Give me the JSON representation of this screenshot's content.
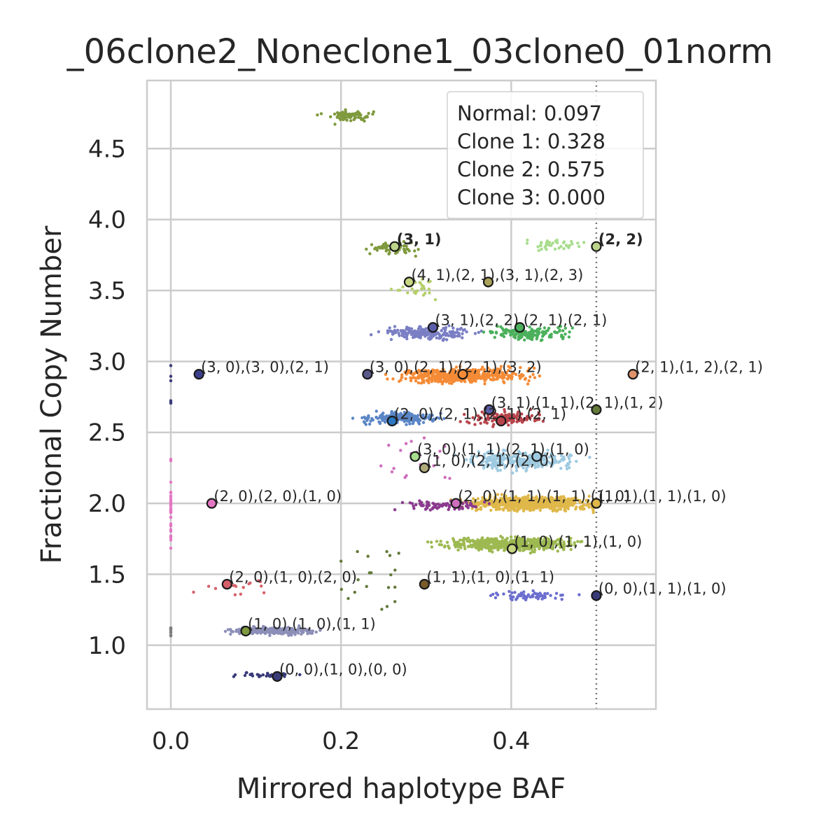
{
  "chart_data": {
    "type": "scatter",
    "title": "_06clone2_Noneclone1_03clone0_01norm",
    "xlabel": "Mirrored haplotype BAF",
    "ylabel": "Fractional Copy Number",
    "xlim": [
      -0.028,
      0.57
    ],
    "ylim": [
      0.55,
      4.98
    ],
    "x_ticks": [
      {
        "value": 0.0,
        "label": "0.0"
      },
      {
        "value": 0.2,
        "label": "0.2"
      },
      {
        "value": 0.4,
        "label": "0.4"
      }
    ],
    "y_ticks": [
      {
        "value": 1.0,
        "label": "1.0"
      },
      {
        "value": 1.5,
        "label": "1.5"
      },
      {
        "value": 2.0,
        "label": "2.0"
      },
      {
        "value": 2.5,
        "label": "2.5"
      },
      {
        "value": 3.0,
        "label": "3.0"
      },
      {
        "value": 3.5,
        "label": "3.5"
      },
      {
        "value": 4.0,
        "label": "4.0"
      },
      {
        "value": 4.5,
        "label": "4.5"
      }
    ],
    "grid": true,
    "reference_line": {
      "x": 0.5,
      "style": "dotted",
      "color": "#777777"
    },
    "legend_position": "top-right",
    "legend_entries": [
      "Normal: 0.097",
      "Clone 1: 0.328",
      "Clone 2: 0.575",
      "Clone 3: 0.000"
    ],
    "clusters": [
      {
        "x": 0.21,
        "y": 4.73,
        "sx": 0.022,
        "sy": 0.035,
        "n": 70,
        "color": "#7f9a3e",
        "seed": 1
      },
      {
        "x": 0.26,
        "y": 3.8,
        "sx": 0.025,
        "sy": 0.04,
        "n": 60,
        "color": "#7f9a3e",
        "seed": 2
      },
      {
        "x": 0.45,
        "y": 3.82,
        "sx": 0.03,
        "sy": 0.03,
        "n": 40,
        "color": "#a8dd8e",
        "seed": 3
      },
      {
        "x": 0.29,
        "y": 3.52,
        "sx": 0.02,
        "sy": 0.07,
        "n": 30,
        "color": "#b5cf6b",
        "seed": 4
      },
      {
        "x": 0.3,
        "y": 3.2,
        "sx": 0.04,
        "sy": 0.035,
        "n": 220,
        "color": "#7a7fc4",
        "seed": 5
      },
      {
        "x": 0.42,
        "y": 3.2,
        "sx": 0.035,
        "sy": 0.035,
        "n": 160,
        "color": "#4bb05b",
        "seed": 6
      },
      {
        "x": 0.34,
        "y": 2.9,
        "sx": 0.06,
        "sy": 0.04,
        "n": 520,
        "color": "#f58b36",
        "seed": 7
      },
      {
        "x": 0.27,
        "y": 2.6,
        "sx": 0.035,
        "sy": 0.03,
        "n": 200,
        "color": "#5b86c6",
        "seed": 8
      },
      {
        "x": 0.39,
        "y": 2.6,
        "sx": 0.035,
        "sy": 0.04,
        "n": 120,
        "color": "#b8444c",
        "seed": 9
      },
      {
        "x": 0.41,
        "y": 2.3,
        "sx": 0.05,
        "sy": 0.05,
        "n": 280,
        "color": "#9ecae1",
        "seed": 10
      },
      {
        "x": 0.42,
        "y": 2.0,
        "sx": 0.06,
        "sy": 0.04,
        "n": 700,
        "color": "#e0b84a",
        "seed": 11
      },
      {
        "x": 0.32,
        "y": 1.99,
        "sx": 0.04,
        "sy": 0.03,
        "n": 90,
        "color": "#8b3a8f",
        "seed": 12
      },
      {
        "x": 0.4,
        "y": 1.71,
        "sx": 0.06,
        "sy": 0.035,
        "n": 520,
        "color": "#9db951",
        "seed": 13
      },
      {
        "x": 0.42,
        "y": 1.35,
        "sx": 0.04,
        "sy": 0.03,
        "n": 60,
        "color": "#6b6ecf",
        "seed": 14
      },
      {
        "x": 0.12,
        "y": 1.1,
        "sx": 0.045,
        "sy": 0.02,
        "n": 240,
        "color": "#8c8fb8",
        "seed": 15
      },
      {
        "x": 0.11,
        "y": 0.79,
        "sx": 0.03,
        "sy": 0.015,
        "n": 30,
        "color": "#393b79",
        "seed": 16
      },
      {
        "x": 0.0,
        "y": 1.95,
        "sx": 0.0,
        "sy": 0.25,
        "n": 40,
        "color": "#e377c2",
        "seed": 17
      },
      {
        "x": 0.0,
        "y": 1.1,
        "sx": 0.0,
        "sy": 0.04,
        "n": 12,
        "color": "#7f7f7f",
        "seed": 18
      },
      {
        "x": 0.0,
        "y": 2.85,
        "sx": 0.0,
        "sy": 0.2,
        "n": 6,
        "color": "#393b79",
        "seed": 19
      },
      {
        "x": 0.09,
        "y": 1.4,
        "sx": 0.04,
        "sy": 0.05,
        "n": 15,
        "color": "#d6616b",
        "seed": 20
      },
      {
        "x": 0.3,
        "y": 2.3,
        "sx": 0.05,
        "sy": 0.15,
        "n": 20,
        "color": "#ce6dbd",
        "seed": 21
      },
      {
        "x": 0.25,
        "y": 1.5,
        "sx": 0.06,
        "sy": 0.2,
        "n": 20,
        "color": "#637939",
        "seed": 22
      }
    ],
    "labeled_points": [
      {
        "x": 0.263,
        "y": 3.81,
        "fill": "#bcd48a",
        "label": "(3, 1)",
        "bold": true
      },
      {
        "x": 0.5,
        "y": 3.81,
        "fill": "#bcd48a",
        "label": "(2, 2)",
        "bold": true
      },
      {
        "x": 0.28,
        "y": 3.56,
        "fill": "#c7d682",
        "label": "(4, 1),(2, 1),(3, 1),(2, 3)",
        "bold": false
      },
      {
        "x": 0.373,
        "y": 3.56,
        "fill": "#a9a45a",
        "label": "",
        "bold": false
      },
      {
        "x": 0.308,
        "y": 3.24,
        "fill": "#5a5fa8",
        "label": "(3, 1),(2, 2),(2, 1),(2, 1)",
        "bold": false
      },
      {
        "x": 0.41,
        "y": 3.24,
        "fill": "#4bb05b",
        "label": "",
        "bold": false
      },
      {
        "x": 0.033,
        "y": 2.91,
        "fill": "#3b3f8c",
        "label": "(3, 0),(3, 0),(2, 1)",
        "bold": false
      },
      {
        "x": 0.231,
        "y": 2.91,
        "fill": "#5a5a8a",
        "label": "(3, 0),(2, 1),(2, 1),(3, 2)",
        "bold": false
      },
      {
        "x": 0.343,
        "y": 2.91,
        "fill": "#f58b36",
        "label": "",
        "bold": false
      },
      {
        "x": 0.543,
        "y": 2.91,
        "fill": "#e0936a",
        "label": "(2, 1),(1, 2),(2, 1)",
        "bold": false
      },
      {
        "x": 0.374,
        "y": 2.66,
        "fill": "#5a5fa8",
        "label": "(3, 1),(1, 1),(2, 1),(1, 2)",
        "bold": false
      },
      {
        "x": 0.5,
        "y": 2.66,
        "fill": "#637939",
        "label": "",
        "bold": false
      },
      {
        "x": 0.26,
        "y": 2.58,
        "fill": "#2b78c0",
        "label": "(2, 0),(2, 1),(2, 1),(2, 1)",
        "bold": false
      },
      {
        "x": 0.388,
        "y": 2.58,
        "fill": "#b8444c",
        "label": "",
        "bold": false
      },
      {
        "x": 0.287,
        "y": 2.33,
        "fill": "#a8dd8e",
        "label": "(3, 0),(1, 1),(2, 1),(1, 0)",
        "bold": false
      },
      {
        "x": 0.43,
        "y": 2.33,
        "fill": "#9ecae1",
        "label": "",
        "bold": false
      },
      {
        "x": 0.298,
        "y": 2.25,
        "fill": "#b0a97a",
        "label": "(1, 0),(2, 1),(2, 0)",
        "bold": false
      },
      {
        "x": 0.048,
        "y": 2.0,
        "fill": "#e377c2",
        "label": "(2, 0),(2, 0),(1, 0)",
        "bold": false
      },
      {
        "x": 0.335,
        "y": 2.0,
        "fill": "#ce6dbd",
        "label": "(2, 0),(1, 1),(1, 1),(1, 0)",
        "bold": false
      },
      {
        "x": 0.5,
        "y": 2.0,
        "fill": "#e0b84a",
        "label": "(1, 1),(1, 1),(1, 0)",
        "bold": false
      },
      {
        "x": 0.401,
        "y": 1.68,
        "fill": "#c7d682",
        "label": "(1, 0),(1, 1),(1, 0)",
        "bold": false
      },
      {
        "x": 0.066,
        "y": 1.43,
        "fill": "#d6616b",
        "label": "(2, 0),(1, 0),(2, 0)",
        "bold": false
      },
      {
        "x": 0.298,
        "y": 1.43,
        "fill": "#7a5c2a",
        "label": "(1, 1),(1, 0),(1, 1)",
        "bold": false
      },
      {
        "x": 0.5,
        "y": 1.35,
        "fill": "#393b79",
        "label": "(0, 0),(1, 1),(1, 0)",
        "bold": false
      },
      {
        "x": 0.088,
        "y": 1.1,
        "fill": "#7f9a3e",
        "label": "(1, 0),(1, 0),(1, 1)",
        "bold": false
      },
      {
        "x": 0.125,
        "y": 0.78,
        "fill": "#393b79",
        "label": "(0, 0),(1, 0),(0, 0)",
        "bold": false
      }
    ]
  }
}
